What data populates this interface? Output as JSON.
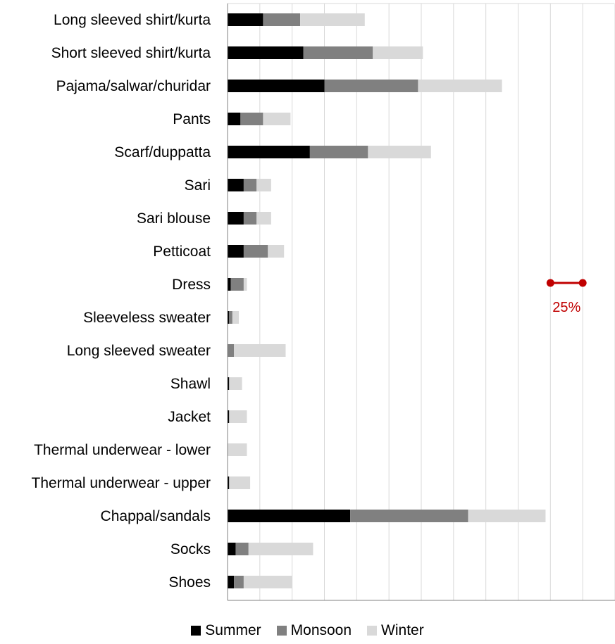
{
  "chart_data": {
    "type": "bar",
    "orientation": "horizontal",
    "stacked": true,
    "categories": [
      "Long sleeved shirt/kurta",
      "Short sleeved shirt/kurta",
      "Pajama/salwar/churidar",
      "Pants",
      "Scarf/duppatta",
      "Sari ",
      "Sari blouse",
      "Petticoat",
      "Dress",
      "Sleeveless sweater",
      "Long sleeved sweater",
      "Shawl",
      "Jacket",
      "Thermal underwear - lower",
      "Thermal underwear - upper",
      "Chappal/sandals",
      "Socks",
      "Shoes"
    ],
    "series": [
      {
        "name": "Summer",
        "color": "#000000",
        "values": [
          11,
          23.5,
          30,
          4,
          25.5,
          5,
          5,
          5,
          1,
          0.5,
          0,
          0.5,
          0.5,
          0,
          0.5,
          38,
          2.5,
          2
        ]
      },
      {
        "name": "Monsoon",
        "color": "#808080",
        "values": [
          11.5,
          21.5,
          29,
          7,
          18,
          4,
          4,
          7.5,
          4,
          1,
          2,
          0,
          0,
          0,
          0,
          36.5,
          4,
          3
        ]
      },
      {
        "name": "Winter",
        "color": "#d9d9d9",
        "values": [
          20,
          15.5,
          26,
          8.5,
          19.5,
          4.5,
          4.5,
          5,
          1,
          2,
          16,
          4,
          5.5,
          6,
          6.5,
          24,
          20,
          15
        ]
      }
    ],
    "xlim": [
      0,
      120
    ],
    "grid": true,
    "legend_position": "bottom",
    "scale_bar": {
      "label": "25%",
      "span": 10,
      "color": "#c00000"
    }
  }
}
